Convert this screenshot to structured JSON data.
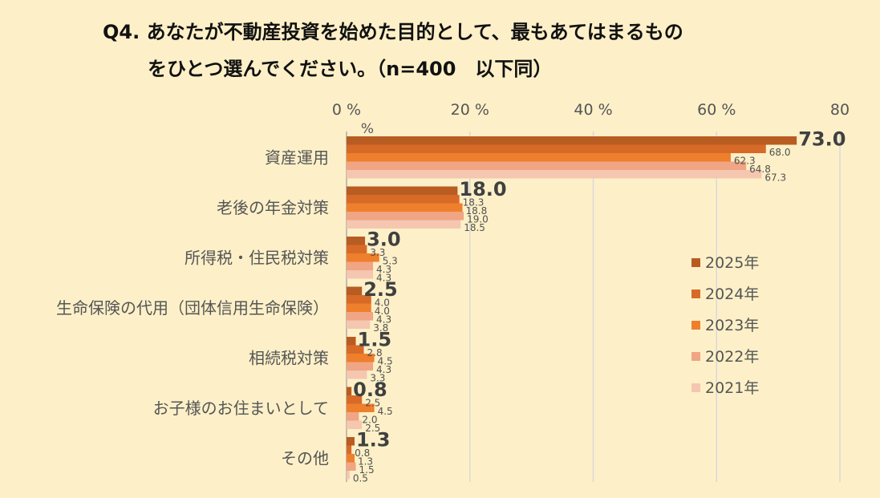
{
  "title": {
    "line1": "Q4. あなたが不動産投資を始めた目的として、最もあてはまるもの",
    "line2": "をひとつ選んでください。（n=400　以下同）"
  },
  "chart_data": {
    "type": "bar",
    "orientation": "horizontal",
    "title": "Q4. あなたが不動産投資を始めた目的として、最もあてはまるものをひとつ選んでください。（n=400　以下同）",
    "categories": [
      "資産運用",
      "老後の年金対策",
      "所得税・住民税対策",
      "生命保険の代用（団体信用生命保険）",
      "相続税対策",
      "お子様のお住まいとして",
      "その他"
    ],
    "series": [
      {
        "name": "2025年",
        "color": "#b85c22",
        "values": [
          73.0,
          18.0,
          3.0,
          2.5,
          1.5,
          0.8,
          1.3
        ]
      },
      {
        "name": "2024年",
        "color": "#d86a28",
        "values": [
          68.0,
          18.3,
          3.3,
          4.0,
          2.8,
          2.5,
          0.8
        ]
      },
      {
        "name": "2023年",
        "color": "#ee7f2d",
        "values": [
          62.3,
          18.8,
          5.3,
          4.0,
          4.5,
          4.5,
          1.3
        ]
      },
      {
        "name": "2022年",
        "color": "#f0a585",
        "values": [
          64.8,
          19.0,
          4.3,
          4.3,
          4.3,
          2.0,
          1.5
        ]
      },
      {
        "name": "2021年",
        "color": "#f5c6b0",
        "values": [
          67.3,
          18.5,
          4.3,
          3.8,
          3.3,
          2.5,
          0.5
        ]
      }
    ],
    "xlim": [
      0,
      80
    ],
    "xticks": [
      0,
      20,
      40,
      60,
      80
    ],
    "xtick_labels": [
      "0 %",
      "20 %",
      "40 %",
      "60 %",
      "80"
    ],
    "xtick_unit_extra": "%",
    "grid": true,
    "legend_position": "right"
  }
}
